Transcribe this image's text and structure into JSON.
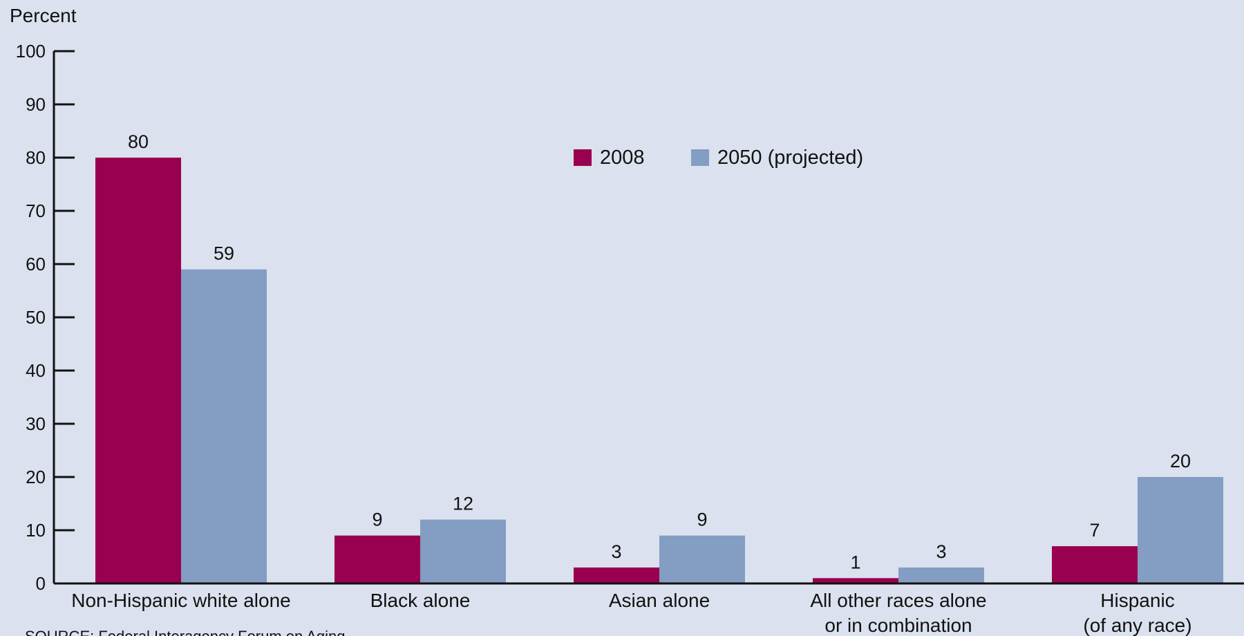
{
  "chart_data": {
    "type": "bar",
    "ylabel": "Percent",
    "ylim": [
      0,
      100
    ],
    "yticks": [
      0,
      10,
      20,
      30,
      40,
      50,
      60,
      70,
      80,
      90,
      100
    ],
    "categories": [
      [
        "Non-Hispanic white alone"
      ],
      [
        "Black alone"
      ],
      [
        "Asian alone"
      ],
      [
        "All other races alone",
        "or in combination"
      ],
      [
        "Hispanic",
        "(of any race)"
      ]
    ],
    "series": [
      {
        "name": "2008",
        "color": "#99004f",
        "values": [
          80,
          9,
          3,
          1,
          7
        ]
      },
      {
        "name": "2050 (projected)",
        "color": "#839dc3",
        "values": [
          59,
          12,
          9,
          3,
          20
        ]
      }
    ],
    "value_labels": [
      [
        "80",
        "9",
        "3",
        "1",
        "7"
      ],
      [
        "59",
        "12",
        "9",
        "3",
        "20"
      ]
    ],
    "legend_position": "top-center",
    "grid": false
  },
  "source": "SOURCE: Federal Interagency Forum on Aging"
}
